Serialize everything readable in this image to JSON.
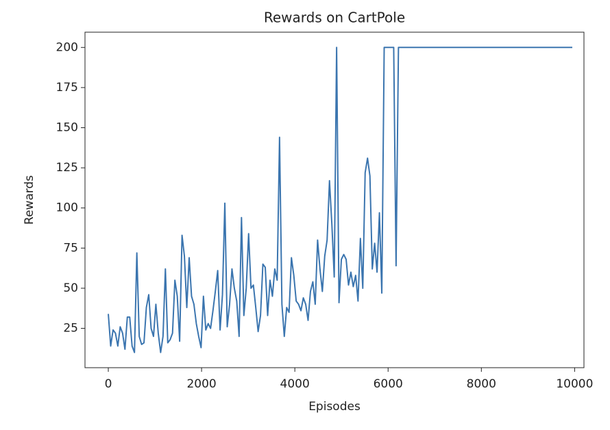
{
  "chart_data": {
    "type": "line",
    "title": "Rewards on CartPole",
    "x_label": "Episodes",
    "y_label": "Rewards",
    "x": [
      0,
      51,
      102,
      153,
      204,
      255,
      306,
      357,
      408,
      459,
      510,
      561,
      612,
      663,
      714,
      765,
      816,
      867,
      918,
      969,
      1020,
      1071,
      1122,
      1173,
      1224,
      1275,
      1326,
      1377,
      1428,
      1479,
      1530,
      1581,
      1632,
      1683,
      1734,
      1785,
      1836,
      1887,
      1938,
      1989,
      2040,
      2091,
      2142,
      2193,
      2244,
      2295,
      2346,
      2397,
      2448,
      2499,
      2550,
      2601,
      2652,
      2703,
      2754,
      2805,
      2856,
      2907,
      2958,
      3009,
      3060,
      3111,
      3162,
      3213,
      3264,
      3315,
      3366,
      3417,
      3468,
      3519,
      3570,
      3621,
      3672,
      3723,
      3774,
      3825,
      3876,
      3927,
      3978,
      4029,
      4080,
      4131,
      4182,
      4233,
      4284,
      4335,
      4386,
      4437,
      4488,
      4539,
      4590,
      4641,
      4692,
      4743,
      4794,
      4845,
      4896,
      4947,
      4998,
      5049,
      5100,
      5151,
      5202,
      5253,
      5304,
      5355,
      5406,
      5457,
      5508,
      5559,
      5610,
      5661,
      5712,
      5763,
      5814,
      5865,
      5916,
      5967,
      6018,
      6069,
      6120,
      6171,
      6222,
      6273,
      9950
    ],
    "series": [
      {
        "color": "#3b75af",
        "values": [
          34,
          14,
          24,
          22,
          14,
          26,
          22,
          12,
          32,
          32,
          14,
          10,
          72,
          20,
          15,
          16,
          38,
          46,
          25,
          20,
          40,
          22,
          10,
          20,
          62,
          16,
          18,
          22,
          55,
          45,
          17,
          83,
          70,
          38,
          69,
          45,
          40,
          28,
          20,
          13,
          45,
          24,
          28,
          25,
          36,
          48,
          61,
          24,
          46,
          103,
          26,
          40,
          62,
          50,
          42,
          20,
          94,
          33,
          50,
          84,
          50,
          52,
          38,
          23,
          33,
          65,
          63,
          33,
          55,
          45,
          62,
          55,
          144,
          40,
          20,
          38,
          35,
          69,
          58,
          42,
          40,
          36,
          44,
          40,
          30,
          48,
          54,
          40,
          80,
          62,
          48,
          70,
          80,
          117,
          90,
          57,
          200,
          41,
          68,
          71,
          68,
          52,
          60,
          51,
          58,
          42,
          81,
          50,
          122,
          131,
          120,
          62,
          78,
          60,
          97,
          47,
          200,
          200,
          200,
          200,
          200,
          64,
          200,
          200,
          200
        ]
      }
    ],
    "xlim": [
      -500,
      10200
    ],
    "ylim": [
      0.5,
      209.5
    ],
    "xticks": [
      0,
      2000,
      4000,
      6000,
      8000,
      10000
    ],
    "yticks": [
      25,
      50,
      75,
      100,
      125,
      150,
      175,
      200
    ]
  }
}
